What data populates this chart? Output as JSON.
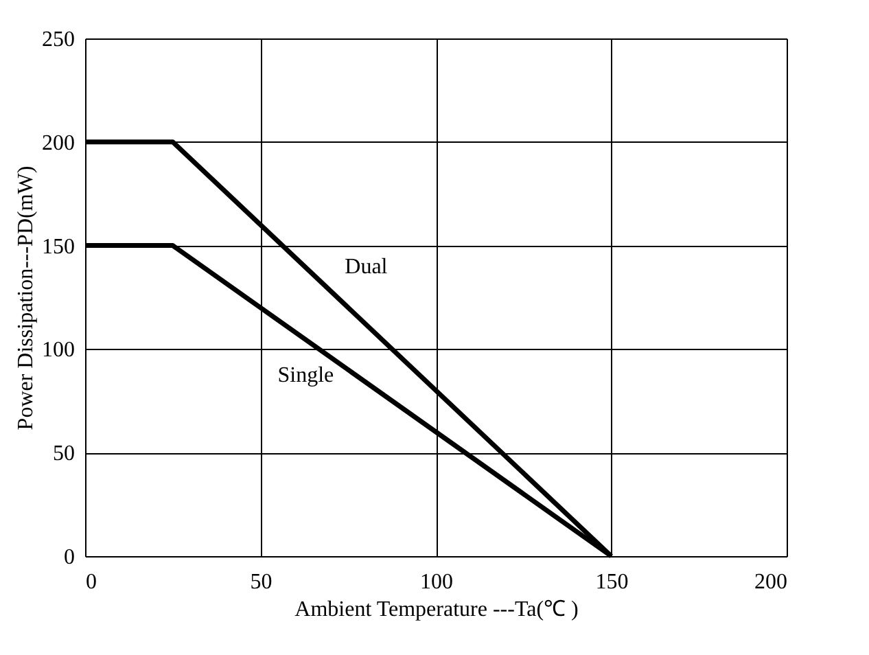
{
  "chart_data": {
    "type": "line",
    "xlabel": "Ambient Temperature ---Ta(℃ )",
    "ylabel": "Power Dissipation---PD(mW)",
    "xlim": [
      0,
      200
    ],
    "ylim": [
      0,
      250
    ],
    "xticks": [
      0,
      50,
      100,
      150,
      200
    ],
    "yticks": [
      0,
      50,
      100,
      150,
      200,
      250
    ],
    "grid": true,
    "marker": "none",
    "line_style": "solid",
    "series": [
      {
        "name": "Dual",
        "color": "#000000",
        "x": [
          0,
          25,
          150
        ],
        "values": [
          200,
          200,
          0
        ]
      },
      {
        "name": "Single",
        "color": "#000000",
        "x": [
          0,
          25,
          150
        ],
        "values": [
          150,
          150,
          0
        ]
      }
    ]
  }
}
